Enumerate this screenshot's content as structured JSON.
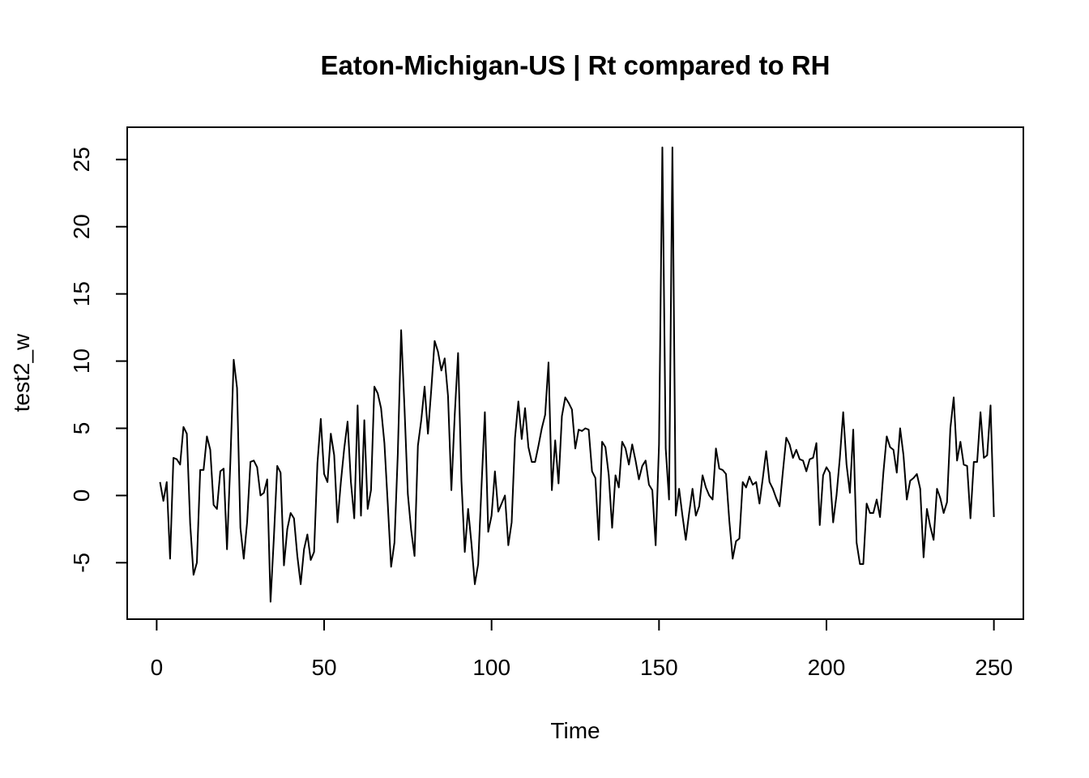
{
  "chart_data": {
    "type": "line",
    "title": "Eaton-Michigan-US | Rt compared to RH",
    "xlabel": "Time",
    "ylabel": "test2_w",
    "xlim": [
      -8.8,
      258.8
    ],
    "ylim": [
      -9.2,
      27.4
    ],
    "xticks": [
      0,
      50,
      100,
      150,
      200,
      250
    ],
    "yticks": [
      -5,
      0,
      5,
      10,
      15,
      20,
      25
    ],
    "grid": false,
    "legend": "none",
    "line_color": "#000000",
    "x_start": 1,
    "y": [
      1.0,
      -0.4,
      1.0,
      -4.7,
      2.8,
      2.7,
      2.3,
      5.1,
      4.6,
      -2.1,
      -5.9,
      -5.0,
      1.9,
      1.9,
      4.4,
      3.4,
      -0.7,
      -1.0,
      1.8,
      2.0,
      -4.0,
      2.5,
      10.1,
      8.0,
      -2.4,
      -4.7,
      -2.0,
      2.5,
      2.6,
      2.1,
      0.0,
      0.2,
      1.2,
      -7.9,
      -3.1,
      2.2,
      1.7,
      -5.2,
      -2.5,
      -1.3,
      -1.7,
      -4.5,
      -6.6,
      -4.0,
      -2.9,
      -4.8,
      -4.2,
      2.4,
      5.7,
      1.6,
      1.0,
      4.6,
      3.0,
      -2.0,
      1.0,
      3.5,
      5.5,
      1.0,
      -1.7,
      6.7,
      -1.5,
      5.6,
      -1.0,
      0.4,
      8.1,
      7.6,
      6.5,
      3.9,
      -0.6,
      -5.3,
      -3.5,
      3.1,
      12.3,
      6.5,
      0.1,
      -2.6,
      -4.5,
      3.7,
      5.6,
      8.1,
      4.6,
      7.9,
      11.5,
      10.7,
      9.3,
      10.2,
      7.4,
      0.4,
      6.0,
      10.6,
      1.1,
      -4.2,
      -1.0,
      -3.6,
      -6.6,
      -5.1,
      0.7,
      6.2,
      -2.7,
      -1.5,
      1.8,
      -1.2,
      -0.6,
      0.0,
      -3.7,
      -2.0,
      4.3,
      7.0,
      4.2,
      6.5,
      3.6,
      2.5,
      2.5,
      3.7,
      5.0,
      6.0,
      9.9,
      0.4,
      4.1,
      0.9,
      5.9,
      7.3,
      6.9,
      6.4,
      3.5,
      4.9,
      4.8,
      5.0,
      4.9,
      1.8,
      1.3,
      -3.3,
      4.0,
      3.6,
      1.5,
      -2.4,
      1.5,
      0.6,
      4.0,
      3.5,
      2.3,
      3.8,
      2.6,
      1.2,
      2.2,
      2.6,
      0.8,
      0.4,
      -3.7,
      3.8,
      25.9,
      3.5,
      -0.3,
      25.9,
      -1.5,
      0.5,
      -1.5,
      -3.3,
      -1.3,
      0.5,
      -1.5,
      -0.8,
      1.5,
      0.6,
      0.0,
      -0.3,
      3.5,
      2.0,
      1.9,
      1.6,
      -1.9,
      -4.7,
      -3.4,
      -3.2,
      1.0,
      0.6,
      1.4,
      0.8,
      1.0,
      -0.6,
      1.3,
      3.3,
      1.0,
      0.5,
      -0.2,
      -0.8,
      1.8,
      4.3,
      3.8,
      2.8,
      3.4,
      2.7,
      2.6,
      1.8,
      2.7,
      2.8,
      3.9,
      -2.2,
      1.5,
      2.1,
      1.7,
      -2.0,
      0.0,
      2.8,
      6.2,
      2.3,
      0.2,
      4.9,
      -3.5,
      -5.1,
      -5.1,
      -0.6,
      -1.3,
      -1.3,
      -0.3,
      -1.6,
      1.7,
      4.4,
      3.6,
      3.4,
      1.7,
      5.0,
      3.0,
      -0.3,
      1.1,
      1.3,
      1.6,
      0.5,
      -4.6,
      -1.0,
      -2.3,
      -3.3,
      0.5,
      -0.2,
      -1.3,
      -0.5,
      5.0,
      7.3,
      2.6,
      4.0,
      2.3,
      2.2,
      -1.7,
      2.5,
      2.5,
      6.2,
      2.8,
      3.0,
      6.7,
      -1.6
    ]
  }
}
